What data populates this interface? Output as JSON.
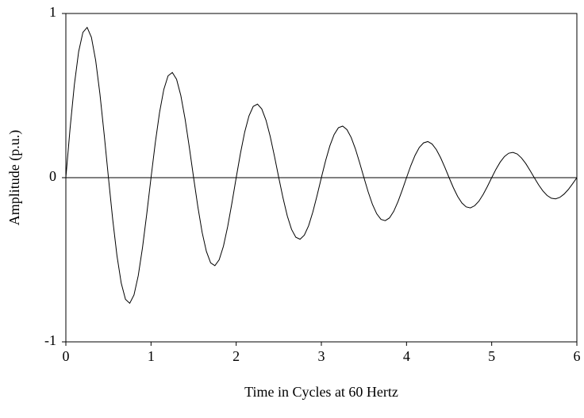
{
  "chart_data": {
    "type": "line",
    "x_label": "Time in Cycles at 60 Hertz",
    "y_label": "Amplitude (p.u.)",
    "xlim": [
      0,
      6
    ],
    "xticks": [
      0,
      1,
      2,
      3,
      4,
      5,
      6
    ],
    "ylim": [
      -1,
      1
    ],
    "yticks": [
      -1,
      0,
      1
    ],
    "grid": false,
    "x": [
      0,
      0.05,
      0.1,
      0.15,
      0.2,
      0.25,
      0.3,
      0.35,
      0.4,
      0.45,
      0.5,
      0.55,
      0.6,
      0.65,
      0.7,
      0.75,
      0.8,
      0.85,
      0.9,
      0.95,
      1,
      1.05,
      1.1,
      1.15,
      1.2,
      1.25,
      1.3,
      1.35,
      1.4,
      1.45,
      1.5,
      1.55,
      1.6,
      1.65,
      1.7,
      1.75,
      1.8,
      1.85,
      1.9,
      1.95,
      2,
      2.05,
      2.1,
      2.15,
      2.2,
      2.25,
      2.3,
      2.35,
      2.4,
      2.45,
      2.5,
      2.55,
      2.6,
      2.65,
      2.7,
      2.75,
      2.8,
      2.85,
      2.9,
      2.95,
      3,
      3.05,
      3.1,
      3.15,
      3.2,
      3.25,
      3.3,
      3.35,
      3.4,
      3.45,
      3.5,
      3.55,
      3.6,
      3.65,
      3.7,
      3.75,
      3.8,
      3.85,
      3.9,
      3.95,
      4,
      4.05,
      4.1,
      4.15,
      4.2,
      4.25,
      4.3,
      4.35,
      4.4,
      4.45,
      4.5,
      4.55,
      4.6,
      4.65,
      4.7,
      4.75,
      4.8,
      4.85,
      4.9,
      4.95,
      5,
      5.05,
      5.1,
      5.15,
      5.2,
      5.25,
      5.3,
      5.35,
      5.4,
      5.45,
      5.5,
      5.55,
      5.6,
      5.65,
      5.7,
      5.75,
      5.8,
      5.85,
      5.9,
      5.95,
      6
    ],
    "series": [
      {
        "color": "#000000",
        "values": [
          0,
          0.303,
          0.567,
          0.767,
          0.885,
          0.915,
          0.855,
          0.714,
          0.51,
          0.263,
          0,
          -0.254,
          -0.475,
          -0.642,
          -0.741,
          -0.765,
          -0.714,
          -0.597,
          -0.426,
          -0.22,
          0,
          0.212,
          0.397,
          0.537,
          0.62,
          0.641,
          0.599,
          0.5,
          0.357,
          0.184,
          0,
          -0.178,
          -0.333,
          -0.449,
          -0.519,
          -0.536,
          -0.5,
          -0.418,
          -0.298,
          -0.154,
          0,
          0.148,
          0.278,
          0.376,
          0.434,
          0.448,
          0.419,
          0.35,
          0.25,
          0.129,
          0,
          -0.124,
          -0.233,
          -0.315,
          -0.363,
          -0.375,
          -0.35,
          -0.293,
          -0.209,
          -0.108,
          0,
          0.104,
          0.194,
          0.263,
          0.304,
          0.314,
          0.293,
          0.245,
          0.175,
          0.09,
          0,
          -0.087,
          -0.163,
          -0.22,
          -0.254,
          -0.262,
          -0.245,
          -0.205,
          -0.146,
          -0.075,
          0,
          0.073,
          0.136,
          0.184,
          0.212,
          0.22,
          0.205,
          0.171,
          0.122,
          0.063,
          0,
          -0.061,
          -0.114,
          -0.154,
          -0.178,
          -0.184,
          -0.171,
          -0.143,
          -0.102,
          -0.053,
          0,
          0.051,
          0.095,
          0.129,
          0.149,
          0.154,
          0.144,
          0.12,
          0.086,
          0.044,
          0,
          -0.043,
          -0.08,
          -0.108,
          -0.125,
          -0.129,
          -0.12,
          -0.1,
          -0.072,
          -0.037,
          0
        ]
      }
    ]
  }
}
